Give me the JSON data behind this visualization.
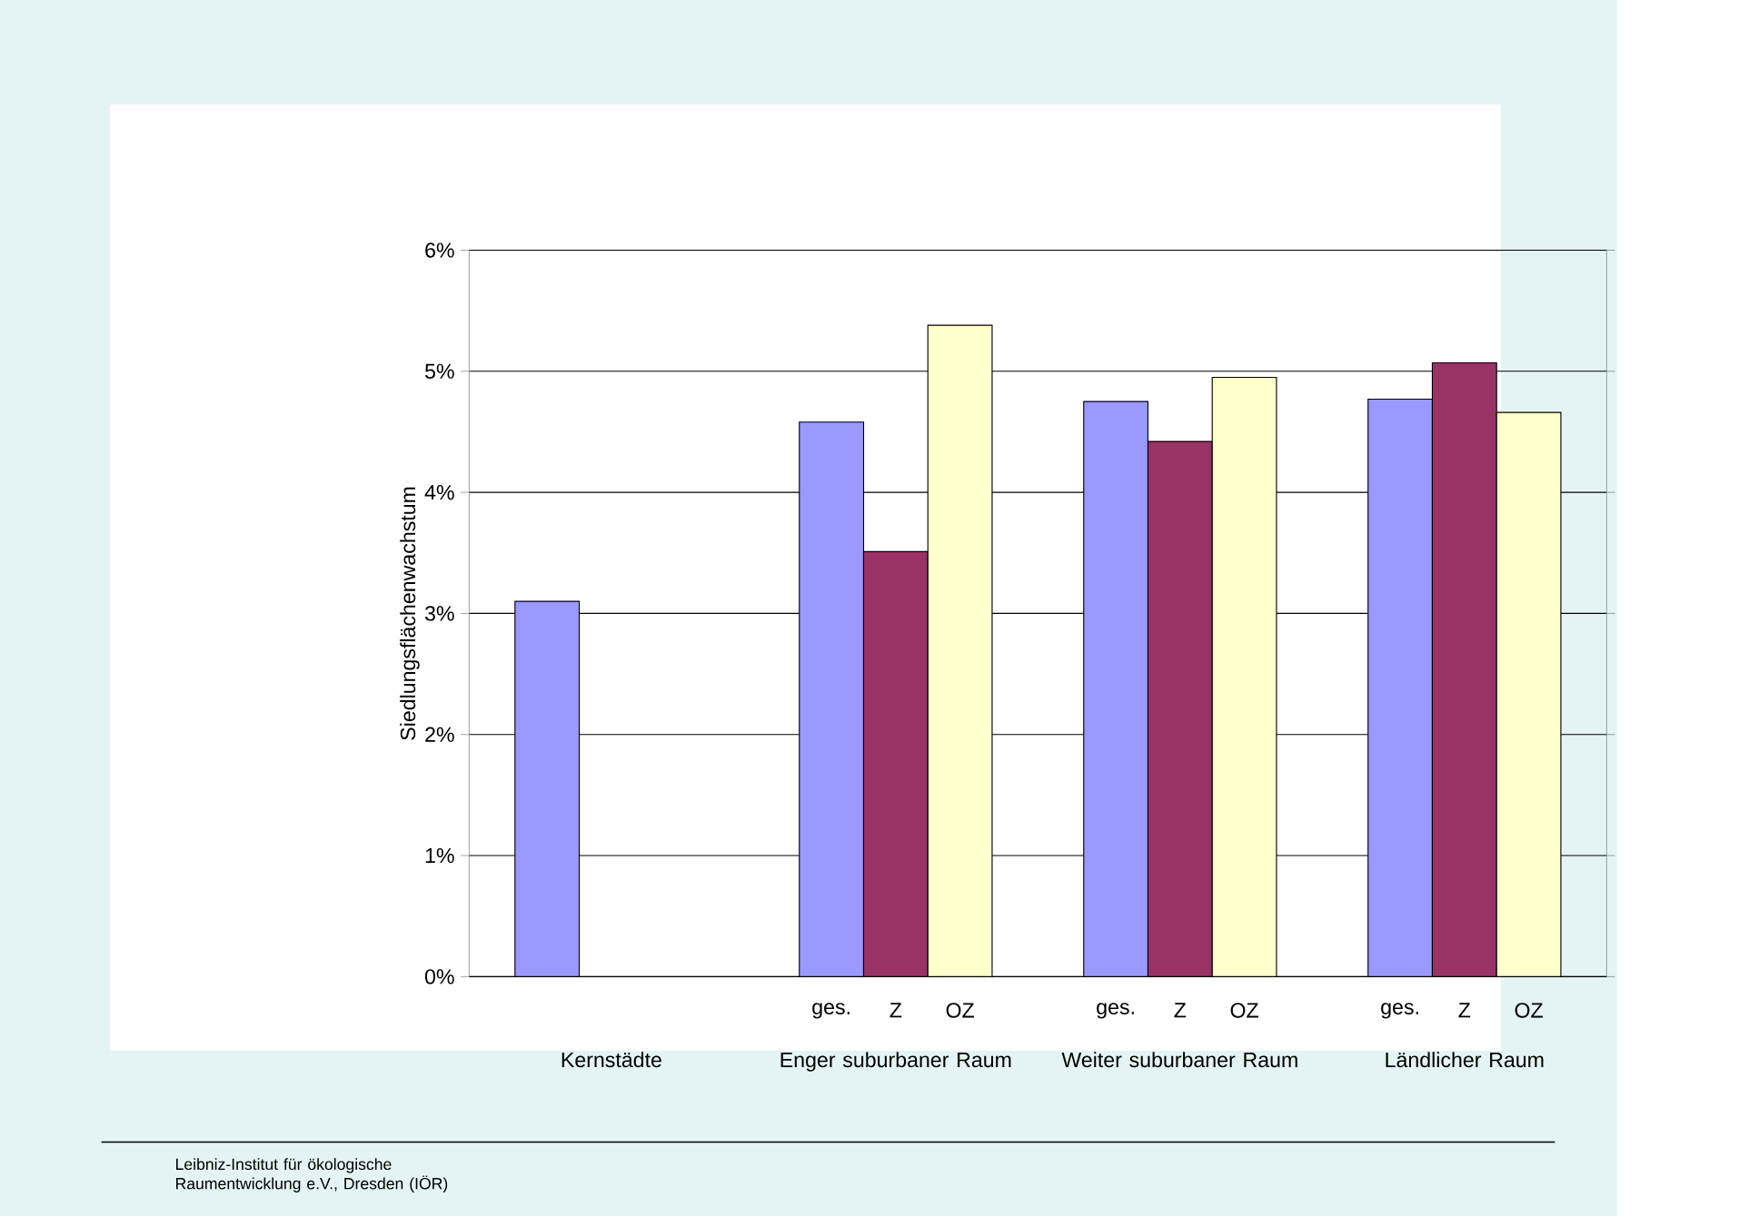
{
  "chart_data": {
    "type": "bar",
    "ylabel": "Siedlungsflächenwachstum",
    "categories": [
      "Kernstädte",
      "Enger suburbaner Raum",
      "Weiter suburbaner Raum",
      "Ländlicher Raum"
    ],
    "series": [
      {
        "name": "ges.",
        "color": "#9999ff",
        "values": [
          3.1,
          4.58,
          4.75,
          4.77
        ]
      },
      {
        "name": "Z",
        "color": "#993366",
        "values": [
          null,
          3.51,
          4.42,
          5.07
        ]
      },
      {
        "name": "OZ",
        "color": "#ffffcc",
        "values": [
          null,
          5.38,
          4.95,
          4.66
        ]
      }
    ],
    "ylim": [
      0,
      6
    ],
    "yticks": [
      {
        "value": 0,
        "label": "0%"
      },
      {
        "value": 1,
        "label": "1%"
      },
      {
        "value": 2,
        "label": "2%"
      },
      {
        "value": 3,
        "label": "3%"
      },
      {
        "value": 4,
        "label": "4%"
      },
      {
        "value": 5,
        "label": "5%"
      },
      {
        "value": 6,
        "label": "6%"
      }
    ],
    "grid": "y",
    "annotations": [
      "Leibniz-Institut für ökologische Raumentwicklung e.V., Dresden (IÖR)"
    ]
  }
}
